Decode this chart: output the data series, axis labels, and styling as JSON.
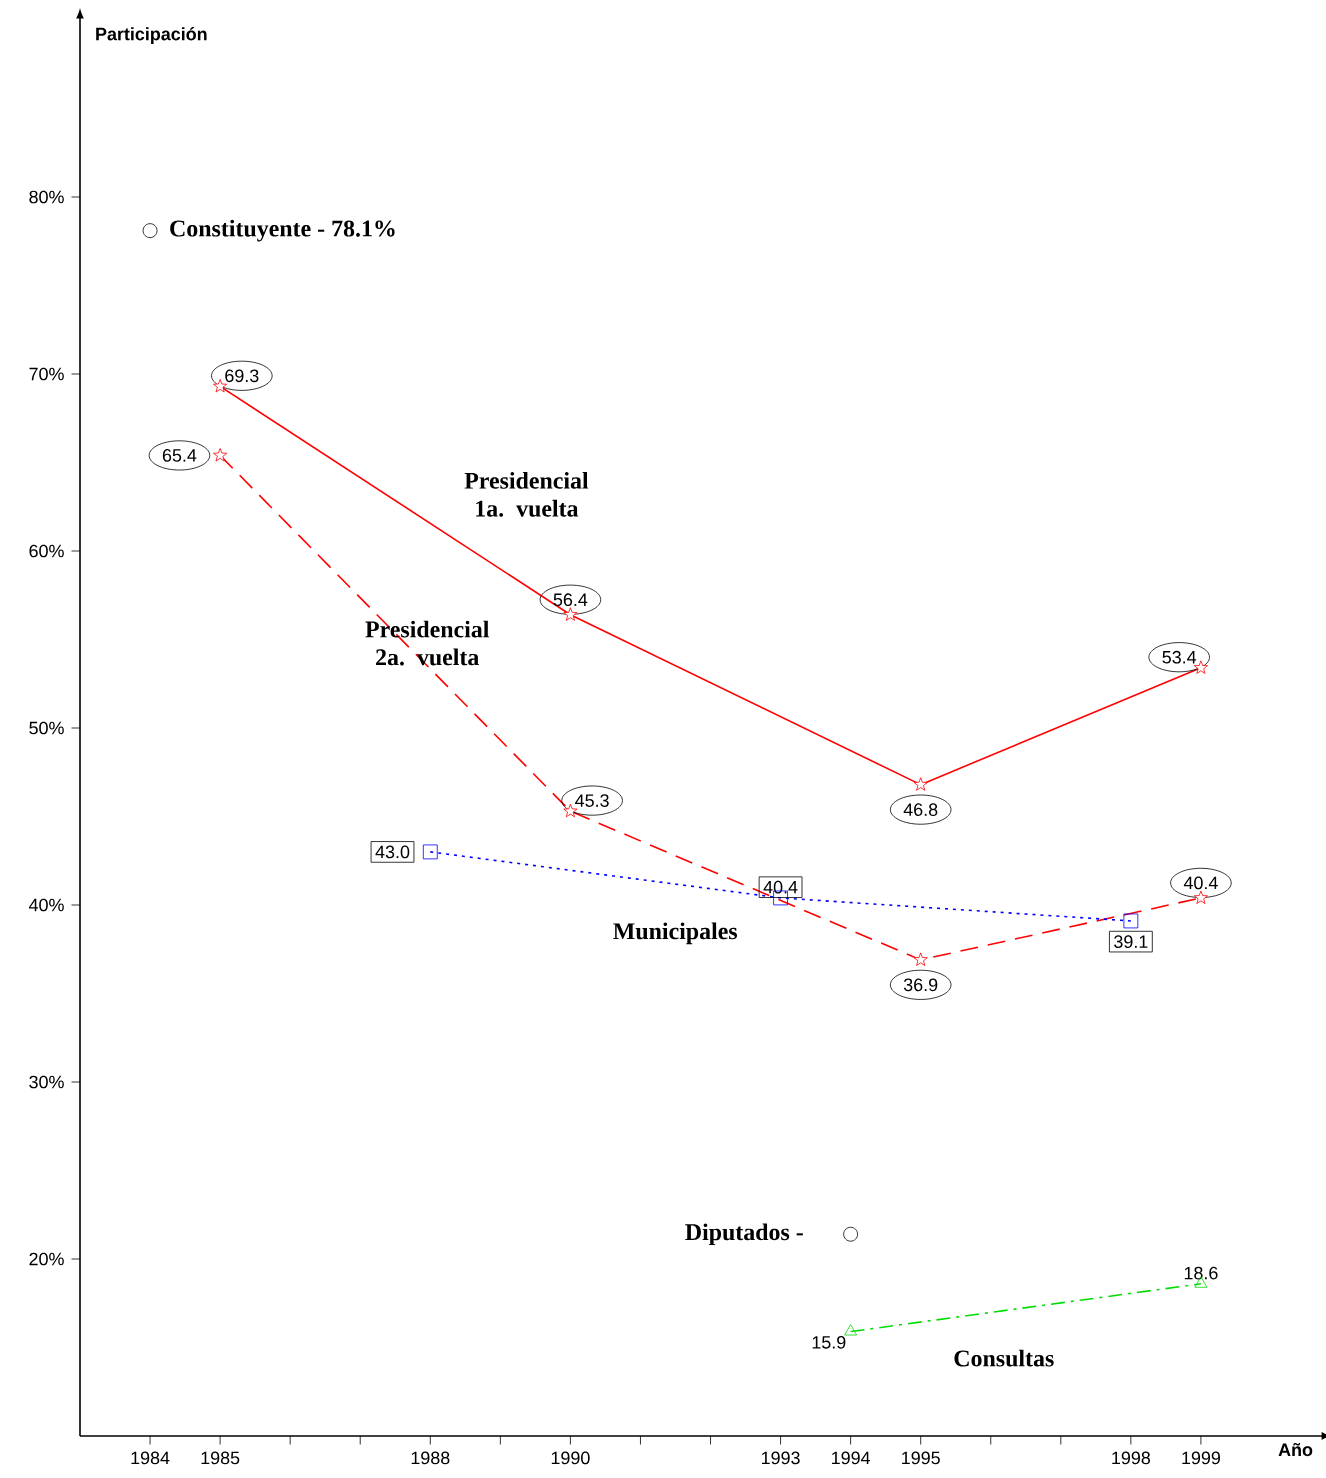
{
  "chart_data": {
    "type": "line",
    "xlabel": "Año",
    "ylabel": "Participación",
    "xlim": [
      1983,
      2000.7
    ],
    "ylim": [
      10,
      90
    ],
    "xticks": [
      1984,
      1985,
      {
        "value": 1986,
        "label": null
      },
      {
        "value": 1987,
        "label": null
      },
      1988,
      {
        "value": 1989,
        "label": null
      },
      1990,
      {
        "value": 1991,
        "label": null
      },
      {
        "value": 1992,
        "label": null
      },
      1993,
      1994,
      1995,
      {
        "value": 1996,
        "label": null
      },
      {
        "value": 1997,
        "label": null
      },
      1998,
      1999
    ],
    "yticks": [
      {
        "value": 20,
        "label": "20%"
      },
      {
        "value": 30,
        "label": "30%"
      },
      {
        "value": 40,
        "label": "40%"
      },
      {
        "value": 50,
        "label": "50%"
      },
      {
        "value": 60,
        "label": "60%"
      },
      {
        "value": 70,
        "label": "70%"
      },
      {
        "value": 80,
        "label": "80%"
      }
    ],
    "grid": false,
    "series": [
      {
        "name": "Presidencial 1a. vuelta",
        "color": "#ff0000",
        "marker": "star",
        "line_style": "solid",
        "x": [
          1985,
          1990,
          1995,
          1999
        ],
        "values": [
          69.3,
          56.4,
          46.8,
          53.4
        ],
        "value_labels": [
          "69.3",
          "56.4",
          "46.8",
          "53.4"
        ]
      },
      {
        "name": "Presidencial 2a. vuelta",
        "color": "#ff0000",
        "marker": "star",
        "line_style": "dashed",
        "x": [
          1985,
          1990,
          1995,
          1999
        ],
        "values": [
          65.4,
          45.3,
          36.9,
          40.4
        ],
        "value_labels": [
          "65.4",
          "45.3",
          "36.9",
          "40.4"
        ]
      },
      {
        "name": "Municipales",
        "color": "#0000ff",
        "marker": "square",
        "line_style": "dotted",
        "x": [
          1988,
          1993,
          1998
        ],
        "values": [
          43.0,
          40.4,
          39.1
        ],
        "value_labels": [
          "43.0",
          "40.4",
          "39.1"
        ]
      },
      {
        "name": "Consultas",
        "color": "#00dd00",
        "marker": "triangle",
        "line_style": "dashdot",
        "x": [
          1994,
          1999
        ],
        "values": [
          15.9,
          18.6
        ],
        "value_labels": [
          "15.9",
          "18.6"
        ]
      },
      {
        "name": "Constituyente - 78.1%",
        "type": "scatter",
        "color": "#000000",
        "marker": "circle",
        "x": [
          1984
        ],
        "values": [
          78.1
        ]
      },
      {
        "name": "Diputados -",
        "type": "scatter",
        "color": "#000000",
        "marker": "circle",
        "x": [
          1994
        ],
        "values": [
          21.4
        ]
      }
    ]
  }
}
